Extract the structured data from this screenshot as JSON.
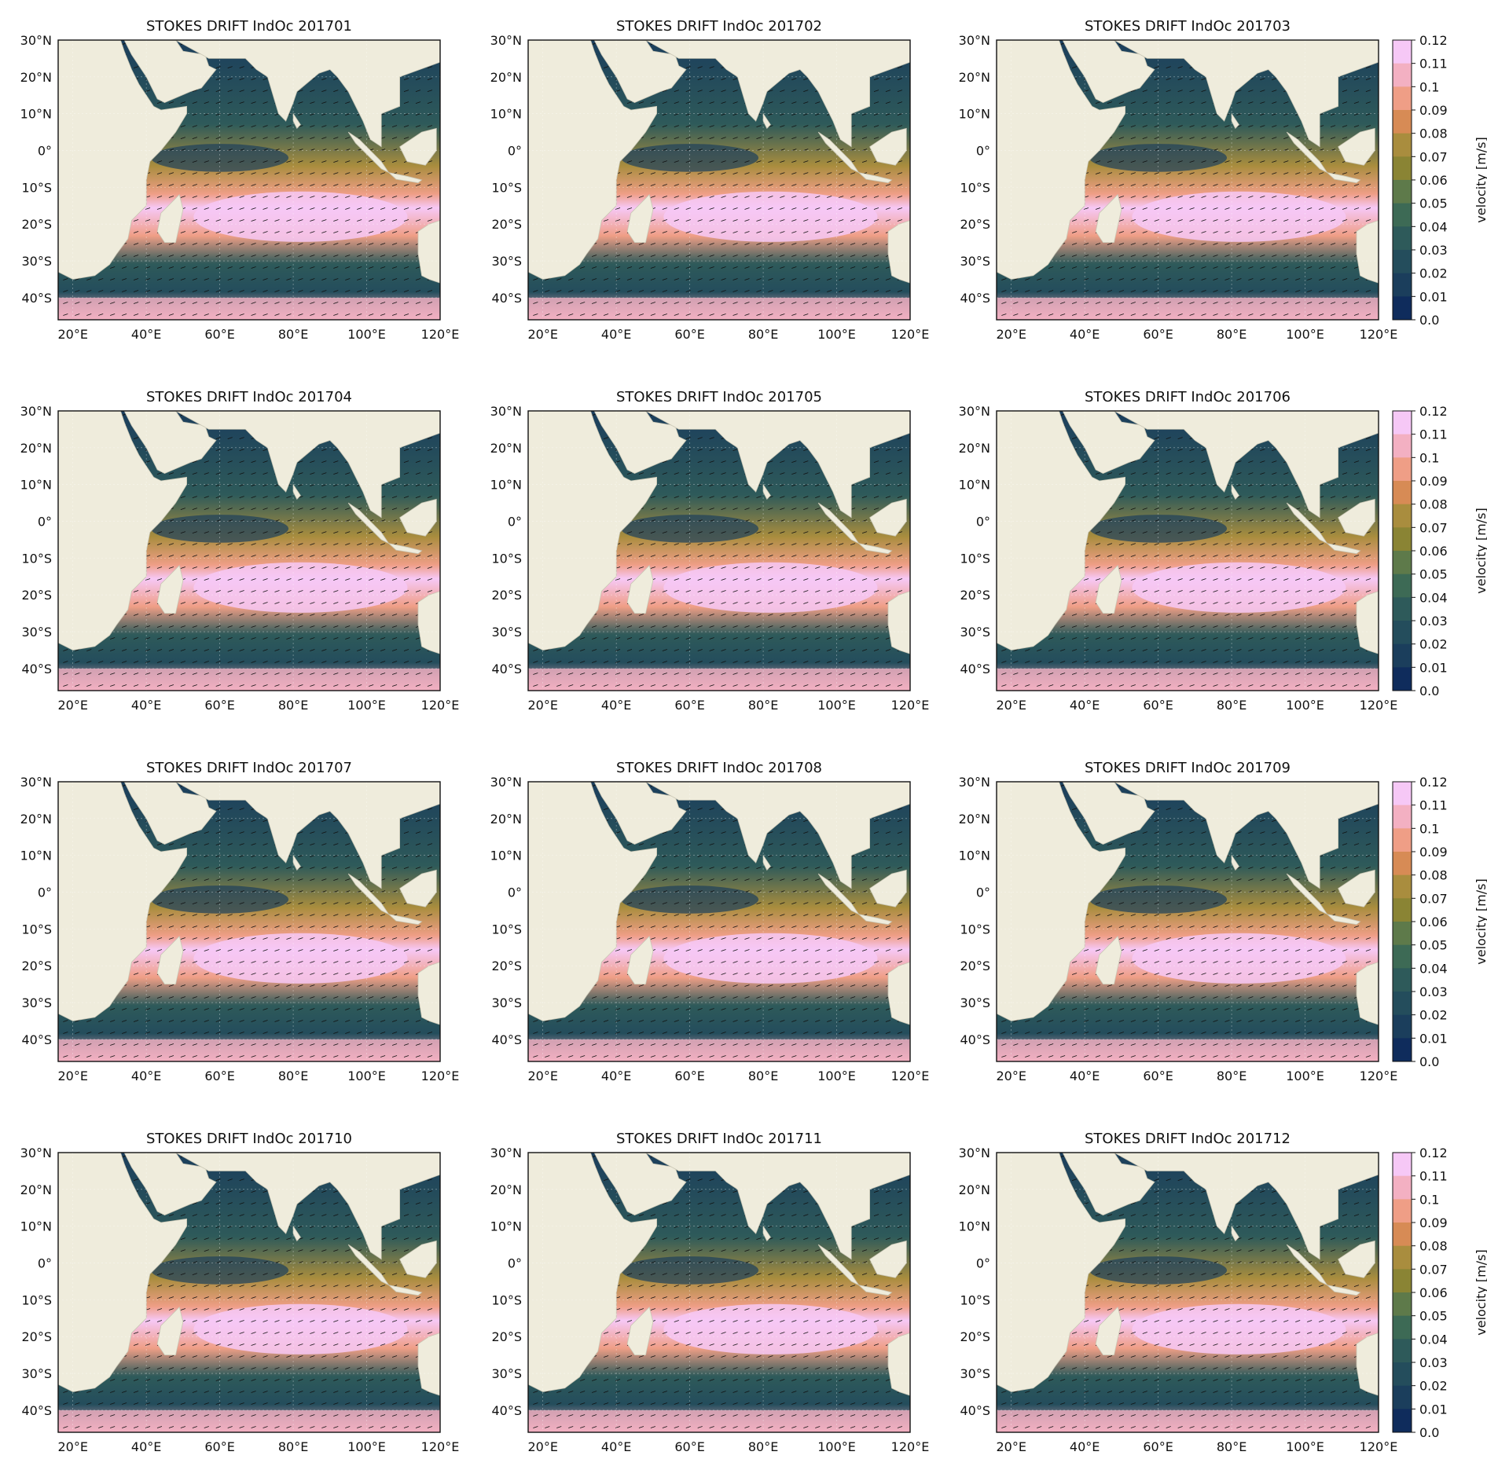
{
  "figure": {
    "panels": [
      {
        "title": "STOKES DRIFT IndOc 201701",
        "colorbar": false
      },
      {
        "title": "STOKES DRIFT IndOc 201702",
        "colorbar": false
      },
      {
        "title": "STOKES DRIFT IndOc 201703",
        "colorbar": true
      },
      {
        "title": "STOKES DRIFT IndOc 201704",
        "colorbar": false
      },
      {
        "title": "STOKES DRIFT IndOc 201705",
        "colorbar": false
      },
      {
        "title": "STOKES DRIFT IndOc 201706",
        "colorbar": true
      },
      {
        "title": "STOKES DRIFT IndOc 201707",
        "colorbar": false
      },
      {
        "title": "STOKES DRIFT IndOc 201708",
        "colorbar": false
      },
      {
        "title": "STOKES DRIFT IndOc 201709",
        "colorbar": true
      },
      {
        "title": "STOKES DRIFT IndOc 201710",
        "colorbar": false
      },
      {
        "title": "STOKES DRIFT IndOc 201711",
        "colorbar": false
      },
      {
        "title": "STOKES DRIFT IndOc 201712",
        "colorbar": true
      }
    ],
    "lon_ticks": [
      "20°E",
      "40°E",
      "60°E",
      "80°E",
      "100°E",
      "120°E"
    ],
    "lat_ticks": [
      "30°N",
      "20°N",
      "10°N",
      "0°",
      "10°S",
      "20°S",
      "30°S",
      "40°S"
    ],
    "colorbar": {
      "label": "velocity [m/s]",
      "ticks": [
        "0.12",
        "0.11",
        "0.1",
        "0.09",
        "0.08",
        "0.07",
        "0.06",
        "0.05",
        "0.04",
        "0.03",
        "0.02",
        "0.01",
        "0.0"
      ],
      "colors": [
        "#f6c8f6",
        "#f3b0c2",
        "#ef9e86",
        "#d78b55",
        "#a98d3e",
        "#8a8434",
        "#5e7a4a",
        "#3d6a55",
        "#2e5a5a",
        "#244d5c",
        "#1b3e5c",
        "#0f2c5c"
      ]
    },
    "land_color": "#efecdc",
    "ocean_low_color": "#0f2c5c",
    "ocean_high_color": "#f6c8f6"
  }
}
